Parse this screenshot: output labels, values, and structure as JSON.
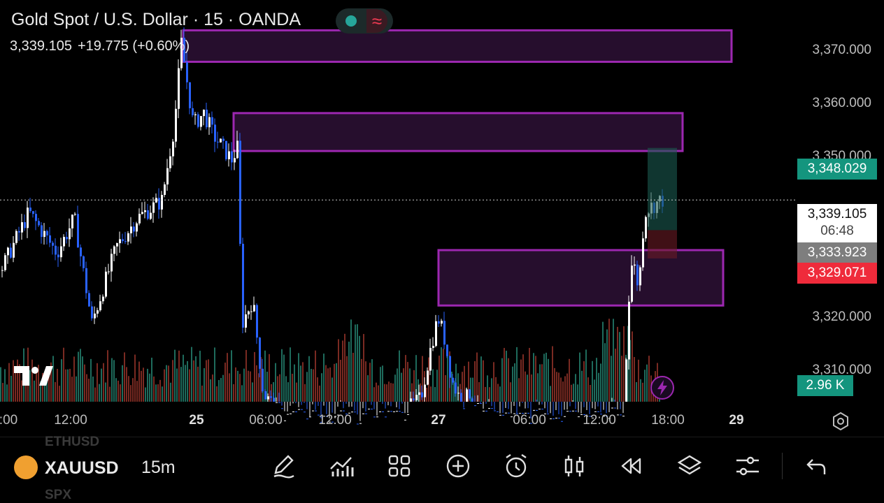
{
  "header": {
    "title": "Gold Spot / U.S. Dollar · 15 · OANDA",
    "price": "3,339.105",
    "change": "+19.775 (+0.60%)"
  },
  "colors": {
    "bull": "#2962ff",
    "bull_body_alt": "#ffffff",
    "up_volume": "#1e6b5c",
    "down_volume": "#7a2a22",
    "zone_fill": "#2a0f32",
    "zone_border": "#9c27b0",
    "green_tag": "#14957e",
    "red_tag": "#ef2b3b",
    "gray_tag": "#7e7e7e"
  },
  "y_axis": {
    "ticks": [
      "3,370.000",
      "3,360.000",
      "3,350.000",
      "3,320.000",
      "3,310.000"
    ]
  },
  "price_tags": {
    "take_profit": "3,348.029",
    "current_price": "3,339.105",
    "countdown": "06:48",
    "entry": "3,333.923",
    "stop_loss": "3,329.071",
    "volume": "2.96 K"
  },
  "x_axis": {
    "ticks": [
      ":00",
      "12:00",
      "25",
      "06:00",
      "12:00",
      "27",
      "06:00",
      "12:00",
      "18:00",
      "29"
    ]
  },
  "zones": [
    {
      "label": "zone-top",
      "low": 3362.8,
      "high": 3368.2
    },
    {
      "label": "zone-upper",
      "low": 3347.5,
      "high": 3354.0
    },
    {
      "label": "zone-lower",
      "low": 3321.0,
      "high": 3330.5
    }
  ],
  "chart_data": {
    "type": "candlestick",
    "symbol": "XAUUSD",
    "interval": "15m",
    "ylim": [
      3304.5,
      3373.4
    ],
    "last_price": 3339.105,
    "points": [
      [
        0,
        3327
      ],
      [
        40,
        3337
      ],
      [
        80,
        3330
      ],
      [
        105,
        3336
      ],
      [
        130,
        3318
      ],
      [
        165,
        3331
      ],
      [
        195,
        3336
      ],
      [
        230,
        3339
      ],
      [
        248,
        3352
      ],
      [
        258,
        3366
      ],
      [
        275,
        3352
      ],
      [
        290,
        3354
      ],
      [
        305,
        3350
      ],
      [
        330,
        3346
      ],
      [
        338,
        3348
      ],
      [
        345,
        3318
      ],
      [
        360,
        3322
      ],
      [
        375,
        3306
      ],
      [
        400,
        3302
      ],
      [
        430,
        3302
      ],
      [
        470,
        3302
      ],
      [
        520,
        3302
      ],
      [
        570,
        3302
      ],
      [
        600,
        3305
      ],
      [
        615,
        3314
      ],
      [
        625,
        3319
      ],
      [
        633,
        3316
      ],
      [
        645,
        3308
      ],
      [
        660,
        3304
      ],
      [
        670,
        3306
      ],
      [
        685,
        3302
      ],
      [
        740,
        3302
      ],
      [
        800,
        3302
      ],
      [
        860,
        3302
      ],
      [
        890,
        3302
      ],
      [
        900,
        3328
      ],
      [
        905,
        3328
      ],
      [
        912,
        3324
      ],
      [
        920,
        3337
      ],
      [
        930,
        3338
      ],
      [
        945,
        3339.1
      ]
    ]
  },
  "bottom_toolbar": {
    "ghost_above": "ETHUSD",
    "symbol": "XAUUSD",
    "ghost_below": "SPX",
    "timeframe": "15m",
    "tools": [
      "pencil-icon",
      "indicators-icon",
      "grid-icon",
      "add-icon",
      "alert-icon",
      "candles-icon",
      "replay-icon",
      "layers-icon",
      "settings-sliders-icon",
      "undo-icon"
    ]
  }
}
